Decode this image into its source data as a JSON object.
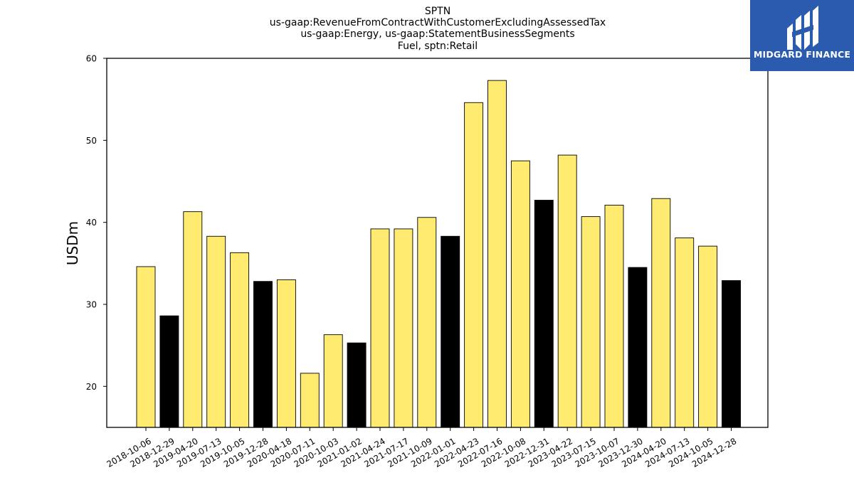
{
  "chart_data": {
    "type": "bar",
    "title_lines": [
      "SPTN",
      "us-gaap:RevenueFromContractWithCustomerExcludingAssessedTax",
      "us-gaap:Energy, us-gaap:StatementBusinessSegments",
      "Fuel, sptn:Retail"
    ],
    "ylabel": "USDm",
    "xlabel": "",
    "ylim": [
      15,
      60
    ],
    "yticks": [
      20,
      30,
      40,
      50,
      60
    ],
    "grid": false,
    "colors": {
      "quarter": "#ffeb70",
      "year_end": "#000000",
      "edge": "#000000"
    },
    "categories": [
      "2018-10-06",
      "2018-12-29",
      "2019-04-20",
      "2019-07-13",
      "2019-10-05",
      "2019-12-28",
      "2020-04-18",
      "2020-07-11",
      "2020-10-03",
      "2021-01-02",
      "2021-04-24",
      "2021-07-17",
      "2021-10-09",
      "2022-01-01",
      "2022-04-23",
      "2022-07-16",
      "2022-10-08",
      "2022-12-31",
      "2023-04-22",
      "2023-07-15",
      "2023-10-07",
      "2023-12-30",
      "2024-04-20",
      "2024-07-13",
      "2024-10-05",
      "2024-12-28"
    ],
    "values": [
      34.6,
      28.6,
      41.3,
      38.3,
      36.3,
      32.8,
      33.0,
      21.6,
      26.3,
      25.3,
      39.2,
      39.2,
      40.6,
      38.3,
      54.6,
      57.3,
      47.5,
      42.7,
      48.2,
      40.7,
      42.1,
      34.5,
      42.9,
      38.1,
      37.1,
      32.9
    ],
    "year_end": [
      false,
      true,
      false,
      false,
      false,
      true,
      false,
      false,
      false,
      true,
      false,
      false,
      false,
      true,
      false,
      false,
      false,
      true,
      false,
      false,
      false,
      true,
      false,
      false,
      false,
      true
    ]
  },
  "logo": {
    "text": "MIDGARD FINANCE",
    "background": "#2b5bae"
  }
}
